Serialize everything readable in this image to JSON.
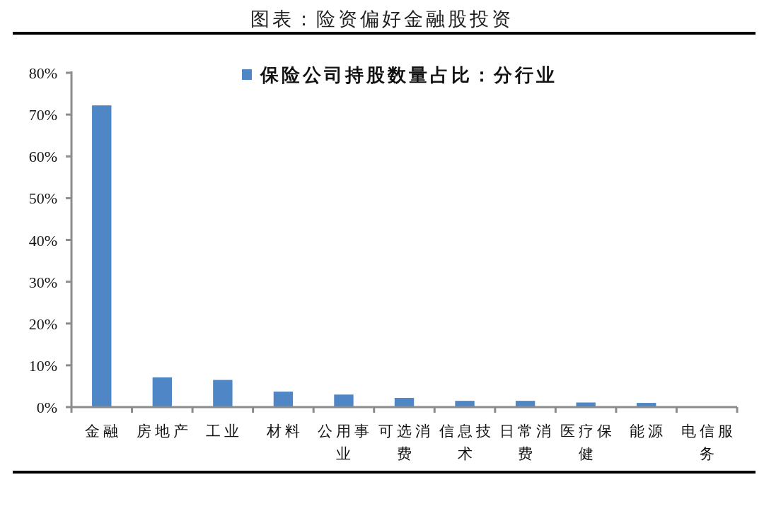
{
  "chart_data": {
    "type": "bar",
    "title": "图表：险资偏好金融股投资",
    "categories": [
      "金融",
      "房地产",
      "工业",
      "材料",
      "公用事业",
      "可选消费",
      "信息技术",
      "日常消费",
      "医疗保健",
      "能源",
      "电信服务"
    ],
    "series": [
      {
        "name": "保险公司持股数量占比：分行业",
        "color": "#4f87c6",
        "values": [
          72.2,
          7.1,
          6.5,
          3.7,
          3.0,
          2.2,
          1.5,
          1.5,
          1.1,
          1.0,
          0
        ]
      }
    ],
    "ylim": [
      0,
      80
    ],
    "yticks": [
      {
        "value": 0,
        "label": "0%"
      },
      {
        "value": 10,
        "label": "10%"
      },
      {
        "value": 20,
        "label": "20%"
      },
      {
        "value": 30,
        "label": "30%"
      },
      {
        "value": 40,
        "label": "40%"
      },
      {
        "value": 50,
        "label": "50%"
      },
      {
        "value": 60,
        "label": "60%"
      },
      {
        "value": 70,
        "label": "70%"
      },
      {
        "value": 80,
        "label": "80%"
      }
    ],
    "legend": "top"
  }
}
